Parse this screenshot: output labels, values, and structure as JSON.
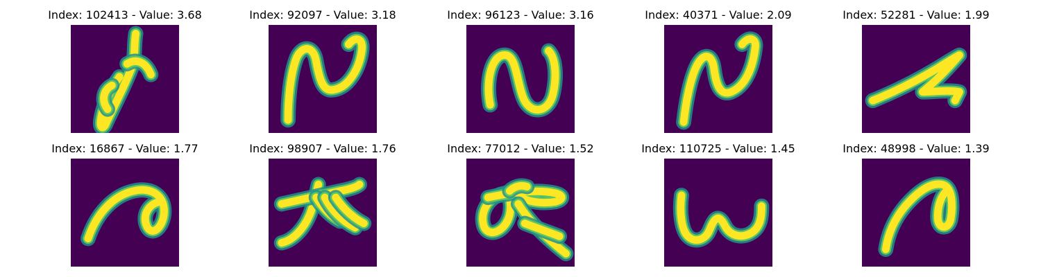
{
  "colors": {
    "background": "#440154",
    "stroke_edge": "#21918c",
    "stroke_mid": "#5ec962",
    "stroke_core": "#fde725"
  },
  "panels": [
    {
      "title": "Index: 102413 - Value: 3.68",
      "glyph": "slanted-loop-with-hook"
    },
    {
      "title": "Index: 92097 - Value: 3.18",
      "glyph": "n-shape-with-tail"
    },
    {
      "title": "Index: 96123 - Value: 3.16",
      "glyph": "rounded-n-shape"
    },
    {
      "title": "Index: 40371 - Value: 2.09",
      "glyph": "bold-n-shape-with-tail"
    },
    {
      "title": "Index: 52281 - Value: 1.99",
      "glyph": "z-zigzag-stroke"
    },
    {
      "title": "Index: 16867 - Value: 1.77",
      "glyph": "curl-with-loop"
    },
    {
      "title": "Index: 98907 - Value: 1.76",
      "glyph": "cross-with-branches"
    },
    {
      "title": "Index: 77012 - Value: 1.52",
      "glyph": "loop-with-cross-and-tail"
    },
    {
      "title": "Index: 110725 - Value: 1.45",
      "glyph": "w-shape"
    },
    {
      "title": "Index: 48998 - Value: 1.39",
      "glyph": "hook-with-blurry-loop"
    }
  ]
}
